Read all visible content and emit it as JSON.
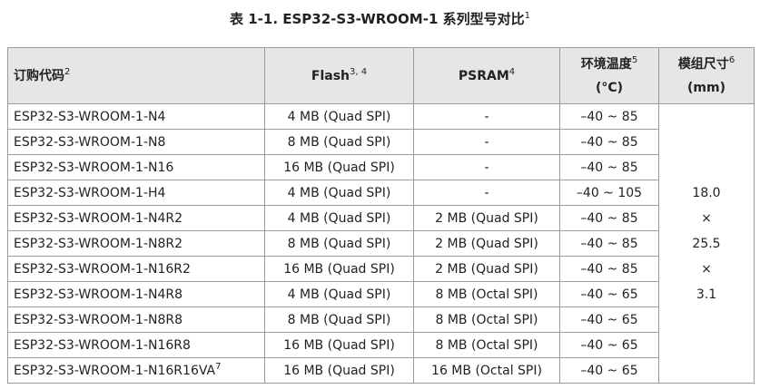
{
  "title": {
    "text": "表 1-1. ESP32-S3-WROOM-1 系列型号对比",
    "sup": "1"
  },
  "table": {
    "headers": [
      {
        "text": "订购代码",
        "sup": "2"
      },
      {
        "text": "Flash",
        "sup": "3, 4"
      },
      {
        "text": "PSRAM",
        "sup": "4"
      },
      {
        "text": "环境温度",
        "sup": "5",
        "line2": "(°C)"
      },
      {
        "text": "模组尺寸",
        "sup": "6",
        "line2": "(mm)"
      }
    ],
    "rows": [
      [
        "ESP32-S3-WROOM-1-N4",
        "4 MB (Quad SPI)",
        "-",
        "–40 ~ 85"
      ],
      [
        "ESP32-S3-WROOM-1-N8",
        "8 MB (Quad SPI)",
        "-",
        "–40 ~ 85"
      ],
      [
        "ESP32-S3-WROOM-1-N16",
        "16 MB (Quad SPI)",
        "-",
        "–40 ~ 85"
      ],
      [
        "ESP32-S3-WROOM-1-H4",
        "4 MB (Quad SPI)",
        "-",
        "–40 ~ 105"
      ],
      [
        "ESP32-S3-WROOM-1-N4R2",
        "4 MB (Quad SPI)",
        "2 MB (Quad SPI)",
        "–40 ~ 85"
      ],
      [
        "ESP32-S3-WROOM-1-N8R2",
        "8 MB (Quad SPI)",
        "2 MB (Quad SPI)",
        "–40 ~ 85"
      ],
      [
        "ESP32-S3-WROOM-1-N16R2",
        "16 MB (Quad SPI)",
        "2 MB (Quad SPI)",
        "–40 ~ 85"
      ],
      [
        "ESP32-S3-WROOM-1-N4R8",
        "4 MB (Quad SPI)",
        "8 MB (Octal SPI)",
        "–40 ~ 65"
      ],
      [
        "ESP32-S3-WROOM-1-N8R8",
        "8 MB (Quad SPI)",
        "8 MB (Octal SPI)",
        "–40 ~ 65"
      ],
      [
        "ESP32-S3-WROOM-1-N16R8",
        "16 MB (Quad SPI)",
        "8 MB (Octal SPI)",
        "–40 ~ 65"
      ],
      [
        {
          "text": "ESP32-S3-WROOM-1-N16R16VA",
          "sup": "7"
        },
        "16 MB (Quad SPI)",
        "16 MB (Octal SPI)",
        "–40 ~ 65"
      ]
    ],
    "dimensions": [
      "18.0",
      "×",
      "25.5",
      "×",
      "3.1"
    ]
  }
}
